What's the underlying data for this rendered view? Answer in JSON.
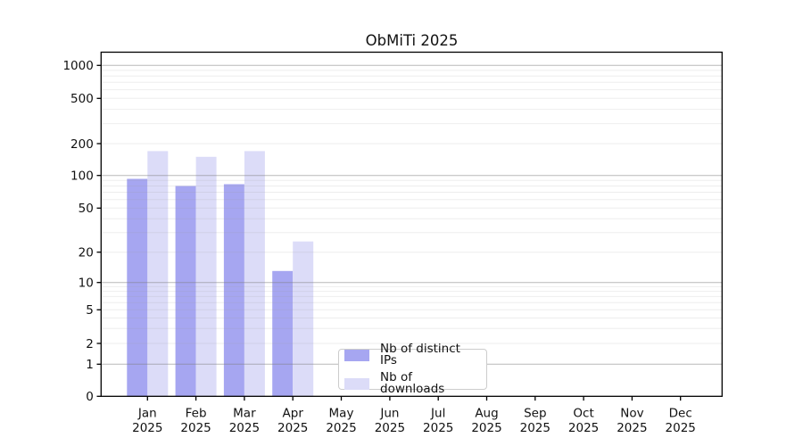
{
  "chart_data": {
    "type": "bar",
    "title": "ObMiTi 2025",
    "x": {
      "categories": [
        "Jan",
        "Feb",
        "Mar",
        "Apr",
        "May",
        "Jun",
        "Jul",
        "Aug",
        "Sep",
        "Oct",
        "Nov",
        "Dec"
      ],
      "year": "2025"
    },
    "series": [
      {
        "name": "Nb of distinct IPs",
        "color": "#a6a6f1",
        "values": [
          93,
          80,
          83,
          13,
          0,
          0,
          0,
          0,
          0,
          0,
          0,
          0
        ]
      },
      {
        "name": "Nb of downloads",
        "color": "#dcdcf8",
        "values": [
          170,
          150,
          170,
          25,
          0,
          0,
          0,
          0,
          0,
          0,
          0,
          0
        ]
      }
    ],
    "yaxis": {
      "scale": "log-with-zero-baseline",
      "tick_labels": [
        0,
        1,
        2,
        5,
        10,
        20,
        50,
        100,
        200,
        500,
        1000
      ],
      "major_gridlines": [
        1,
        10,
        100,
        1000
      ],
      "minor_gridlines": [
        2,
        3,
        4,
        5,
        6,
        7,
        8,
        9,
        20,
        30,
        40,
        50,
        60,
        70,
        80,
        90,
        200,
        300,
        400,
        500,
        600,
        700,
        800,
        900
      ],
      "ylim": [
        0,
        1000
      ]
    },
    "legend": {
      "location": "lower center",
      "entries_from_series": true
    },
    "grid": true,
    "styles": {
      "axis_color": "#000000",
      "text_color": "#111111",
      "major_grid_color": "#808080",
      "minor_grid_color": "#999999",
      "legend_border_color": "#cccccc",
      "background": "#ffffff"
    }
  }
}
